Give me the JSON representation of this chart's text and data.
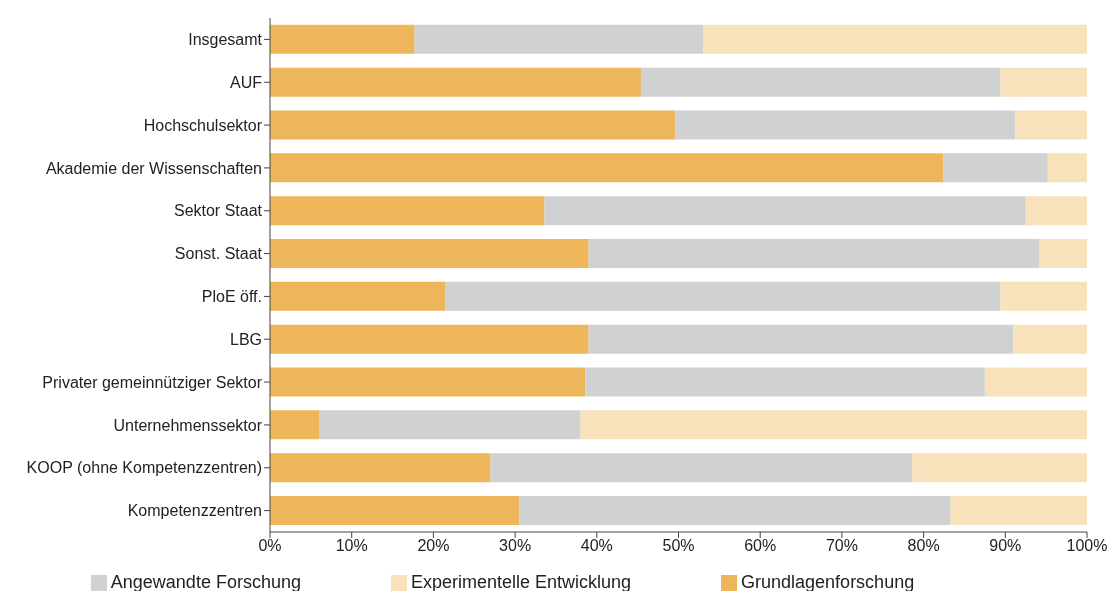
{
  "chart_data": {
    "type": "bar",
    "orientation": "horizontal",
    "stacked": true,
    "categories": [
      "Insgesamt",
      "AUF",
      "Hochschulsektor",
      "Akademie der Wissenschaften",
      "Sektor Staat",
      "Sonst. Staat",
      "PloE öff.",
      "LBG",
      "Privater gemeinnütziger Sektor",
      "Unternehmenssektor",
      "KOOP (ohne Kompetenzzentren)",
      "Kompetenzzentren"
    ],
    "series": [
      {
        "name": "Grundlagenforschung",
        "color": "#edb65a",
        "values": [
          17.7,
          45.4,
          49.6,
          82.4,
          33.6,
          39.0,
          21.5,
          39.0,
          38.6,
          6.0,
          27.0,
          30.5
        ]
      },
      {
        "name": "Angewandte Forschung",
        "color": "#d0d1d2",
        "values": [
          35.3,
          44.0,
          41.6,
          12.8,
          58.9,
          55.2,
          67.9,
          52.0,
          48.9,
          32.0,
          51.6,
          52.8
        ]
      },
      {
        "name": "Experimentelle Entwicklung",
        "color": "#f8e2bb",
        "values": [
          47.0,
          10.6,
          8.8,
          4.8,
          7.5,
          5.8,
          10.6,
          9.0,
          12.5,
          62.0,
          21.4,
          16.7
        ]
      }
    ],
    "xlim": [
      0,
      100
    ],
    "xticks": [
      {
        "value": 0,
        "label": "0%"
      },
      {
        "value": 10,
        "label": "10%"
      },
      {
        "value": 20,
        "label": "20%"
      },
      {
        "value": 30,
        "label": "30%"
      },
      {
        "value": 40,
        "label": "40%"
      },
      {
        "value": 50,
        "label": "50%"
      },
      {
        "value": 60,
        "label": "60%"
      },
      {
        "value": 70,
        "label": "70%"
      },
      {
        "value": 80,
        "label": "80%"
      },
      {
        "value": 90,
        "label": "90%"
      },
      {
        "value": 100,
        "label": "100%"
      }
    ],
    "legend": "bottom"
  }
}
